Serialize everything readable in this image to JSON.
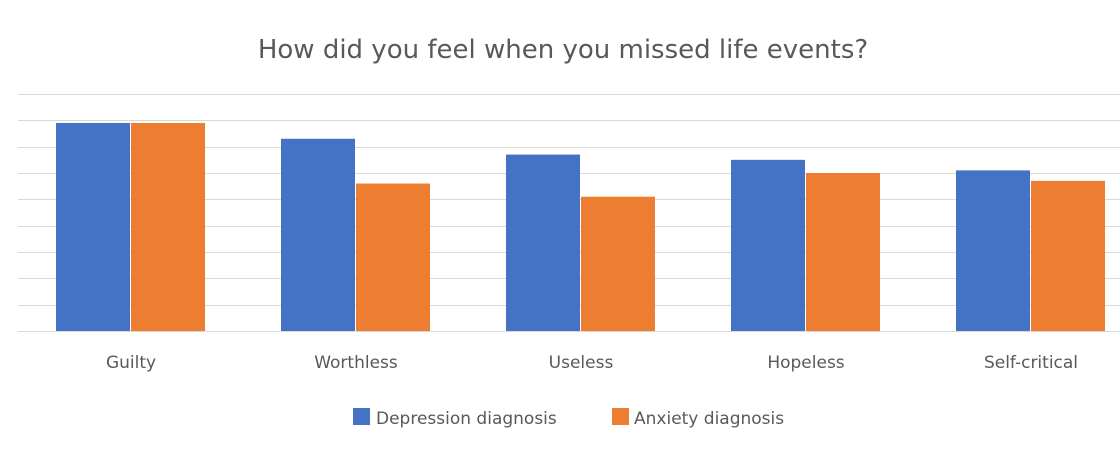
{
  "chart_data": {
    "type": "bar",
    "title": "How did you feel when you missed life events?",
    "categories": [
      "Guilty",
      "Worthless",
      "Useless",
      "Hopeless",
      "Self-critical"
    ],
    "series": [
      {
        "name": "Depression diagnosis",
        "color": "#4472c4",
        "values": [
          79,
          73,
          67,
          65,
          61
        ]
      },
      {
        "name": "Anxiety diagnosis",
        "color": "#ed7d31",
        "values": [
          79,
          56,
          51,
          60,
          57
        ]
      }
    ],
    "ylim": [
      0,
      90
    ],
    "ytick_step": 10,
    "grid": true,
    "legend": "bottom",
    "xlabel": "",
    "ylabel": ""
  }
}
